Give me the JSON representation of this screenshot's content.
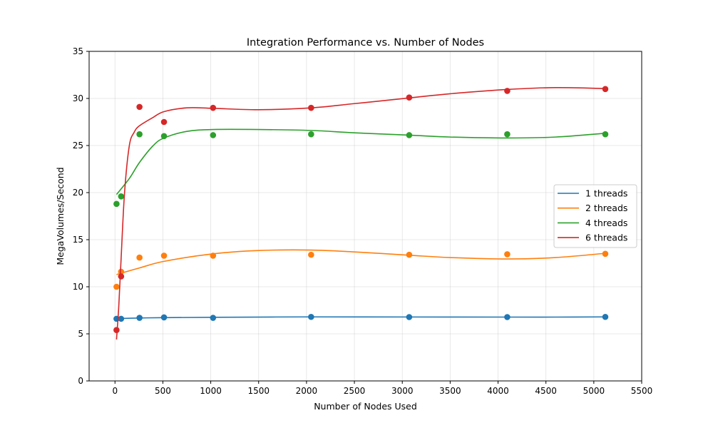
{
  "chart_data": {
    "type": "line",
    "title": "Integration Performance vs. Number of Nodes",
    "xlabel": "Number of Nodes Used",
    "ylabel": "MegaVolumes/Second",
    "xlim": [
      -270,
      5500
    ],
    "ylim": [
      0,
      35
    ],
    "xticks": [
      0,
      500,
      1000,
      1500,
      2000,
      2500,
      3000,
      3500,
      4000,
      4500,
      5000,
      5500
    ],
    "yticks": [
      0,
      5,
      10,
      15,
      20,
      25,
      30,
      35
    ],
    "grid": true,
    "legend_position": "right",
    "series": [
      {
        "name": "1 threads",
        "color": "#1f77b4",
        "points": [
          [
            16,
            6.6
          ],
          [
            64,
            6.6
          ],
          [
            256,
            6.7
          ],
          [
            512,
            6.75
          ],
          [
            1024,
            6.7
          ],
          [
            2048,
            6.8
          ],
          [
            3072,
            6.78
          ],
          [
            4096,
            6.78
          ],
          [
            5120,
            6.8
          ]
        ],
        "fit": [
          [
            16,
            6.62
          ],
          [
            256,
            6.68
          ],
          [
            512,
            6.72
          ],
          [
            1024,
            6.76
          ],
          [
            2048,
            6.8
          ],
          [
            3072,
            6.79
          ],
          [
            4096,
            6.78
          ],
          [
            4600,
            6.78
          ],
          [
            5120,
            6.8
          ]
        ]
      },
      {
        "name": "2 threads",
        "color": "#ff7f0e",
        "points": [
          [
            16,
            10.0
          ],
          [
            64,
            11.6
          ],
          [
            256,
            13.1
          ],
          [
            512,
            13.3
          ],
          [
            1024,
            13.3
          ],
          [
            2048,
            13.4
          ],
          [
            3072,
            13.4
          ],
          [
            4096,
            13.45
          ],
          [
            5120,
            13.5
          ]
        ],
        "fit": [
          [
            16,
            11.3
          ],
          [
            256,
            12.0
          ],
          [
            512,
            12.7
          ],
          [
            1024,
            13.5
          ],
          [
            1500,
            13.85
          ],
          [
            2048,
            13.9
          ],
          [
            2500,
            13.7
          ],
          [
            3072,
            13.35
          ],
          [
            3500,
            13.1
          ],
          [
            4096,
            12.95
          ],
          [
            4600,
            13.1
          ],
          [
            5120,
            13.55
          ]
        ]
      },
      {
        "name": "4 threads",
        "color": "#2ca02c",
        "points": [
          [
            16,
            18.8
          ],
          [
            64,
            19.6
          ],
          [
            256,
            26.2
          ],
          [
            512,
            26.0
          ],
          [
            1024,
            26.1
          ],
          [
            2048,
            26.2
          ],
          [
            3072,
            26.1
          ],
          [
            4096,
            26.2
          ],
          [
            5120,
            26.2
          ]
        ],
        "fit": [
          [
            16,
            19.8
          ],
          [
            150,
            21.5
          ],
          [
            256,
            23.2
          ],
          [
            400,
            25.0
          ],
          [
            512,
            25.8
          ],
          [
            750,
            26.5
          ],
          [
            1024,
            26.7
          ],
          [
            1500,
            26.7
          ],
          [
            2048,
            26.6
          ],
          [
            2500,
            26.35
          ],
          [
            3072,
            26.1
          ],
          [
            3500,
            25.9
          ],
          [
            4096,
            25.8
          ],
          [
            4600,
            25.9
          ],
          [
            5120,
            26.3
          ]
        ]
      },
      {
        "name": "6 threads",
        "color": "#d62728",
        "points": [
          [
            16,
            5.4
          ],
          [
            64,
            11.1
          ],
          [
            256,
            29.1
          ],
          [
            512,
            27.5
          ],
          [
            1024,
            29.0
          ],
          [
            2048,
            29.0
          ],
          [
            3072,
            30.1
          ],
          [
            4096,
            30.8
          ],
          [
            5120,
            31.0
          ]
        ],
        "fit": [
          [
            16,
            4.4
          ],
          [
            40,
            8.0
          ],
          [
            64,
            13.0
          ],
          [
            100,
            20.0
          ],
          [
            150,
            25.0
          ],
          [
            200,
            26.4
          ],
          [
            256,
            27.1
          ],
          [
            400,
            28.0
          ],
          [
            512,
            28.6
          ],
          [
            750,
            29.0
          ],
          [
            1024,
            28.95
          ],
          [
            1500,
            28.8
          ],
          [
            2048,
            29.0
          ],
          [
            2500,
            29.45
          ],
          [
            3072,
            30.05
          ],
          [
            3500,
            30.5
          ],
          [
            4096,
            30.95
          ],
          [
            4600,
            31.15
          ],
          [
            5120,
            31.05
          ]
        ]
      }
    ]
  }
}
